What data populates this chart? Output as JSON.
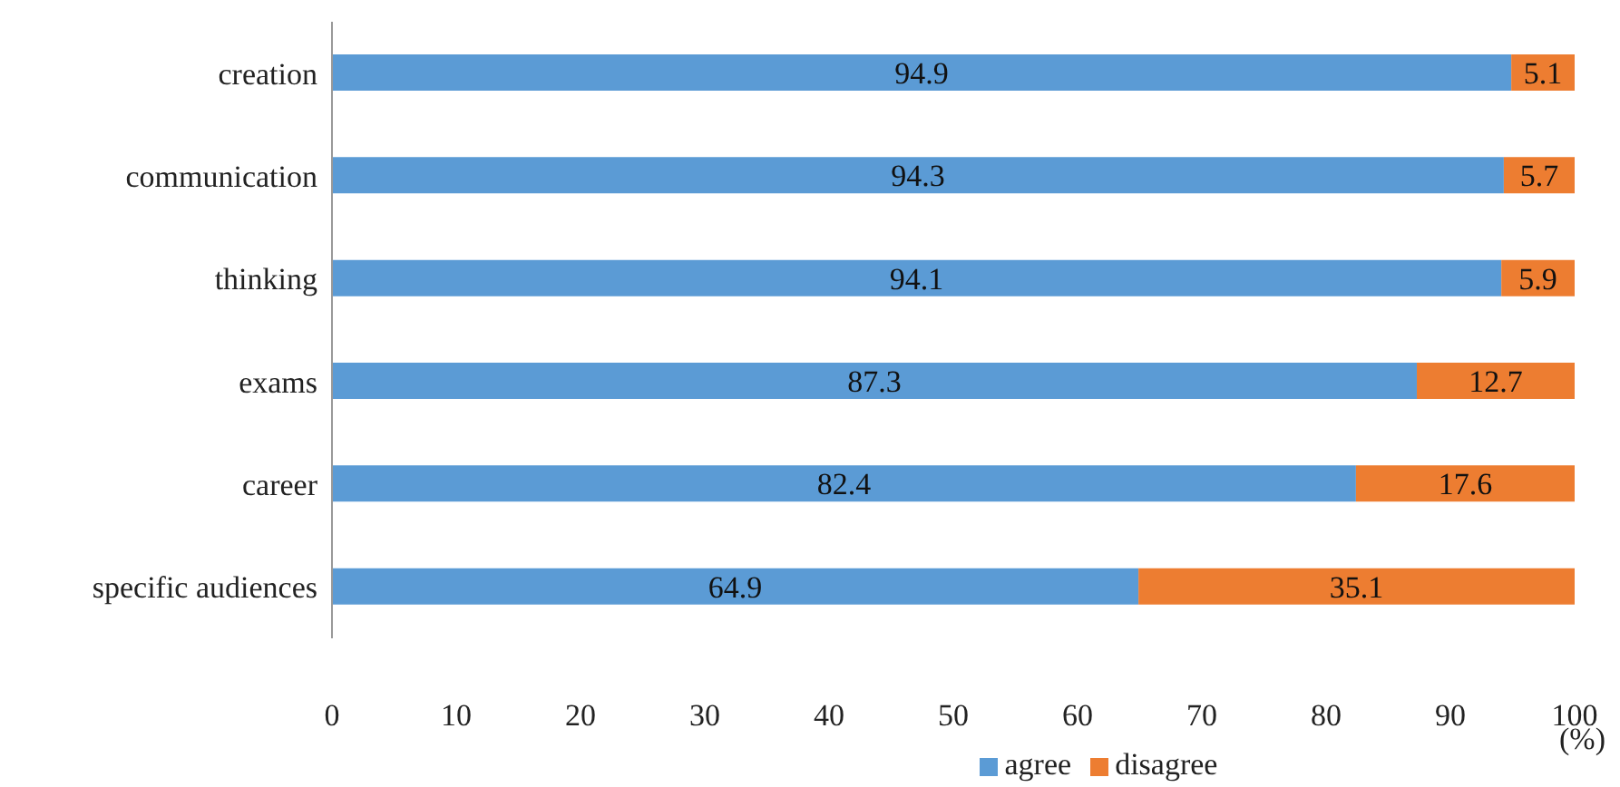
{
  "chart_data": {
    "type": "bar",
    "orientation": "horizontal",
    "stacked": true,
    "categories": [
      "creation",
      "communication",
      "thinking",
      "exams",
      "career",
      "specific audiences"
    ],
    "series": [
      {
        "name": "agree",
        "color": "#5b9bd5",
        "values": [
          94.9,
          94.3,
          94.1,
          87.3,
          82.4,
          64.9
        ]
      },
      {
        "name": "disagree",
        "color": "#ed7d31",
        "values": [
          5.1,
          5.7,
          5.9,
          12.7,
          17.6,
          35.1
        ]
      }
    ],
    "xlabel": "(%)",
    "xlim": [
      0,
      100
    ],
    "xticks": [
      0,
      10,
      20,
      30,
      40,
      50,
      60,
      70,
      80,
      90,
      100
    ],
    "data_labels": true,
    "grid": false,
    "legend": "bottom"
  }
}
